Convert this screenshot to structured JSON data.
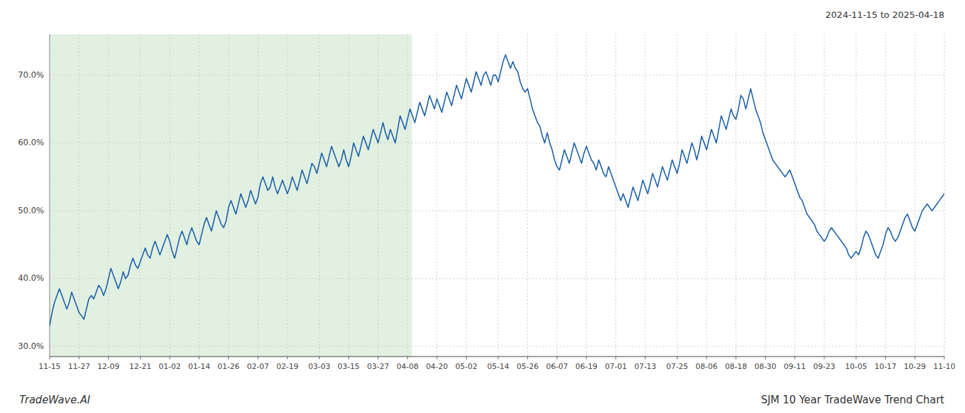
{
  "chart_data": {
    "type": "line",
    "title": "SJM 10 Year TradeWave Trend Chart",
    "subtitle": "2024-11-15 to 2025-04-18",
    "annotations": [
      "TradeWave.AI"
    ],
    "color": "#1a5fa8",
    "grid": true,
    "ylim": [
      28.5,
      76.0
    ],
    "yticks": [
      {
        "value": 30.0,
        "label": "30.0%"
      },
      {
        "value": 40.0,
        "label": "40.0%"
      },
      {
        "value": 50.0,
        "label": "50.0%"
      },
      {
        "value": 60.0,
        "label": "60.0%"
      },
      {
        "value": 70.0,
        "label": "70.0%"
      }
    ],
    "shade": {
      "start": 0,
      "end": 147.825,
      "color": "#d4ead4"
    },
    "categories": [
      "11-15",
      null,
      null,
      null,
      null,
      null,
      null,
      null,
      null,
      null,
      null,
      null,
      "11-27",
      null,
      null,
      null,
      null,
      null,
      null,
      null,
      null,
      null,
      null,
      null,
      "12-09",
      null,
      null,
      null,
      null,
      null,
      null,
      null,
      null,
      null,
      null,
      null,
      null,
      "12-21",
      null,
      null,
      null,
      null,
      null,
      null,
      null,
      null,
      null,
      null,
      null,
      "01-02",
      null,
      null,
      null,
      null,
      null,
      null,
      null,
      null,
      null,
      null,
      null,
      "01-14",
      null,
      null,
      null,
      null,
      null,
      null,
      null,
      null,
      null,
      null,
      null,
      "01-26",
      null,
      null,
      null,
      null,
      null,
      null,
      null,
      null,
      null,
      null,
      null,
      "02-07",
      null,
      null,
      null,
      null,
      null,
      null,
      null,
      null,
      null,
      null,
      null,
      "02-19",
      null,
      null,
      null,
      null,
      null,
      null,
      null,
      null,
      null,
      null,
      null,
      null,
      "03-03",
      null,
      null,
      null,
      null,
      null,
      null,
      null,
      null,
      null,
      null,
      null,
      "03-15",
      null,
      null,
      null,
      null,
      null,
      null,
      null,
      null,
      null,
      null,
      null,
      "03-27",
      null,
      null,
      null,
      null,
      null,
      null,
      null,
      null,
      null,
      null,
      null,
      "04-08",
      null,
      null,
      null,
      null,
      null,
      null,
      null,
      null,
      null,
      null,
      null,
      "04-20",
      null,
      null,
      null,
      null,
      null,
      null,
      null,
      null,
      null,
      null,
      null,
      "05-02",
      null,
      null,
      null,
      null,
      null,
      null,
      null,
      null,
      null,
      null,
      null,
      null,
      "05-14",
      null,
      null,
      null,
      null,
      null,
      null,
      null,
      null,
      null,
      null,
      null,
      "05-26",
      null,
      null,
      null,
      null,
      null,
      null,
      null,
      null,
      null,
      null,
      null,
      "06-07",
      null,
      null,
      null,
      null,
      null,
      null,
      null,
      null,
      null,
      null,
      null,
      "06-19",
      null,
      null,
      null,
      null,
      null,
      null,
      null,
      null,
      null,
      null,
      null,
      "07-01",
      null,
      null,
      null,
      null,
      null,
      null,
      null,
      null,
      null,
      null,
      null,
      "07-13",
      null,
      null,
      null,
      null,
      null,
      null,
      null,
      null,
      null,
      null,
      null,
      null,
      "07-25",
      null,
      null,
      null,
      null,
      null,
      null,
      null,
      null,
      null,
      null,
      null,
      "08-06",
      null,
      null,
      null,
      null,
      null,
      null,
      null,
      null,
      null,
      null,
      null,
      "08-18",
      null,
      null,
      null,
      null,
      null,
      null,
      null,
      null,
      null,
      null,
      null,
      "08-30",
      null,
      null,
      null,
      null,
      null,
      null,
      null,
      null,
      null,
      null,
      null,
      "09-11",
      null,
      null,
      null,
      null,
      null,
      null,
      null,
      null,
      null,
      null,
      null,
      "09-23",
      null,
      null,
      null,
      null,
      null,
      null,
      null,
      null,
      null,
      null,
      null,
      null,
      "10-05",
      null,
      null,
      null,
      null,
      null,
      null,
      null,
      null,
      null,
      null,
      null,
      "10-17",
      null,
      null,
      null,
      null,
      null,
      null,
      null,
      null,
      null,
      null,
      null,
      "10-29",
      null,
      null,
      null,
      null,
      null,
      null,
      null,
      null,
      null,
      null,
      null,
      "11-10"
    ],
    "values": [
      33.0,
      35.0,
      36.5,
      37.5,
      38.5,
      37.5,
      36.5,
      35.5,
      36.5,
      38.0,
      37.0,
      36.0,
      35.0,
      34.5,
      34.0,
      35.5,
      37.0,
      37.5,
      37.0,
      38.0,
      39.0,
      38.5,
      37.5,
      38.5,
      40.0,
      41.5,
      40.5,
      39.5,
      38.5,
      39.5,
      41.0,
      40.0,
      40.5,
      42.0,
      43.0,
      42.0,
      41.5,
      42.5,
      43.5,
      44.5,
      43.5,
      43.0,
      44.5,
      45.5,
      44.5,
      43.5,
      44.5,
      45.5,
      46.5,
      45.5,
      44.0,
      43.0,
      44.5,
      46.0,
      47.0,
      46.0,
      45.0,
      46.5,
      47.5,
      46.5,
      45.5,
      45.0,
      46.5,
      48.0,
      49.0,
      48.0,
      47.0,
      48.5,
      50.0,
      49.0,
      48.0,
      47.5,
      48.5,
      50.5,
      51.5,
      50.5,
      49.5,
      51.0,
      52.5,
      51.5,
      50.5,
      51.5,
      53.0,
      52.0,
      51.0,
      52.0,
      54.0,
      55.0,
      54.0,
      53.0,
      53.5,
      55.0,
      53.5,
      52.5,
      53.5,
      54.5,
      53.5,
      52.5,
      53.5,
      55.0,
      54.0,
      53.0,
      54.5,
      56.0,
      55.0,
      54.0,
      55.5,
      57.0,
      56.5,
      55.5,
      57.0,
      58.5,
      57.5,
      56.5,
      58.0,
      59.5,
      58.5,
      57.5,
      56.5,
      57.5,
      59.0,
      57.5,
      56.5,
      58.0,
      60.0,
      59.0,
      58.0,
      59.5,
      61.0,
      60.0,
      59.0,
      60.5,
      62.0,
      61.0,
      60.0,
      61.5,
      63.0,
      61.5,
      60.5,
      62.0,
      61.0,
      60.0,
      62.0,
      64.0,
      63.0,
      62.0,
      63.5,
      65.0,
      64.0,
      63.0,
      64.5,
      66.0,
      65.0,
      64.0,
      65.5,
      67.0,
      66.0,
      65.0,
      66.5,
      65.5,
      64.5,
      66.0,
      67.5,
      66.5,
      65.5,
      67.0,
      68.5,
      67.5,
      66.5,
      68.0,
      69.5,
      68.5,
      67.5,
      69.0,
      70.5,
      69.5,
      68.5,
      70.0,
      70.5,
      69.5,
      68.5,
      70.0,
      70.0,
      69.0,
      70.5,
      72.0,
      73.0,
      72.0,
      71.0,
      72.0,
      71.0,
      70.5,
      69.0,
      68.0,
      67.5,
      68.0,
      66.5,
      65.0,
      64.0,
      63.0,
      62.5,
      61.0,
      60.0,
      61.5,
      60.0,
      59.0,
      57.5,
      56.5,
      56.0,
      57.5,
      59.0,
      58.0,
      57.0,
      58.5,
      60.0,
      59.0,
      58.0,
      57.0,
      58.5,
      59.5,
      58.5,
      57.5,
      57.0,
      56.0,
      57.5,
      56.5,
      55.5,
      55.0,
      56.5,
      55.5,
      54.5,
      53.5,
      52.5,
      51.5,
      52.5,
      51.5,
      50.5,
      52.0,
      53.5,
      52.5,
      51.5,
      53.0,
      54.5,
      53.5,
      52.5,
      54.0,
      55.5,
      54.5,
      53.5,
      55.0,
      56.5,
      55.5,
      54.5,
      56.0,
      57.5,
      56.5,
      55.5,
      57.0,
      59.0,
      58.0,
      57.0,
      58.5,
      60.0,
      59.0,
      57.5,
      59.0,
      61.0,
      60.0,
      59.0,
      60.5,
      62.0,
      61.0,
      60.0,
      62.0,
      64.0,
      63.0,
      62.0,
      63.5,
      65.0,
      64.0,
      63.5,
      65.0,
      67.0,
      66.5,
      65.0,
      66.5,
      68.0,
      66.5,
      65.0,
      64.0,
      63.0,
      61.5,
      60.5,
      59.5,
      58.5,
      57.5,
      57.0,
      56.5,
      56.0,
      55.5,
      55.0,
      55.5,
      56.0,
      55.0,
      54.0,
      53.0,
      52.0,
      51.5,
      50.5,
      49.5,
      49.0,
      48.5,
      48.0,
      47.0,
      46.5,
      46.0,
      45.5,
      46.0,
      47.0,
      47.5,
      47.0,
      46.5,
      46.0,
      45.5,
      45.0,
      44.5,
      43.5,
      43.0,
      43.5,
      44.0,
      43.5,
      44.5,
      46.0,
      47.0,
      46.5,
      45.5,
      44.5,
      43.5,
      43.0,
      44.0,
      45.0,
      46.5,
      47.5,
      47.0,
      46.0,
      45.5,
      46.0,
      47.0,
      48.0,
      49.0,
      49.5,
      48.5,
      47.5,
      47.0,
      48.0,
      49.0,
      50.0,
      50.5,
      51.0,
      50.5,
      50.0,
      50.5,
      51.0,
      51.5,
      52.0,
      52.5
    ]
  }
}
